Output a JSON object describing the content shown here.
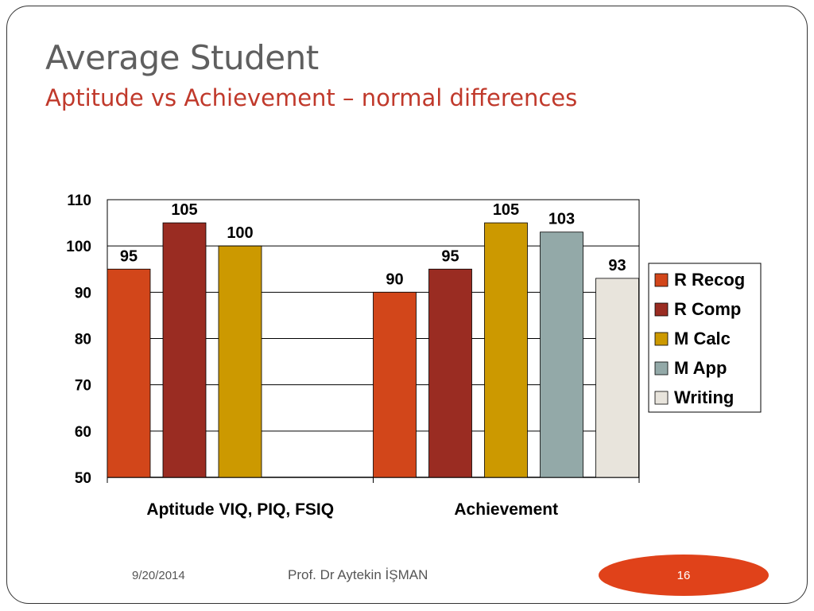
{
  "slide": {
    "title": "Average Student",
    "subtitle": "Aptitude vs Achievement – normal differences"
  },
  "footer": {
    "date": "9/20/2014",
    "author": "Prof. Dr Aytekin İŞMAN",
    "page_number": "16"
  },
  "colors": {
    "R Recog": "#d2461a",
    "R Comp": "#9a2c22",
    "M Calc": "#cc9900",
    "M App": "#93a9a8",
    "Writing": "#e8e4dc",
    "accent": "#e0421a"
  },
  "chart_data": {
    "type": "bar",
    "categories": [
      "Aptitude VIQ, PIQ, FSIQ",
      "Achievement"
    ],
    "series": [
      {
        "name": "R Recog",
        "values": [
          95,
          90
        ]
      },
      {
        "name": "R Comp",
        "values": [
          105,
          95
        ]
      },
      {
        "name": "M Calc",
        "values": [
          100,
          105
        ]
      },
      {
        "name": "M App",
        "values": [
          null,
          103
        ]
      },
      {
        "name": "Writing",
        "values": [
          null,
          93
        ]
      }
    ],
    "ylim": [
      50,
      110
    ],
    "yticks": [
      50,
      60,
      70,
      80,
      90,
      100,
      110
    ],
    "grid": true,
    "legend_position": "right",
    "data_labels": true
  }
}
